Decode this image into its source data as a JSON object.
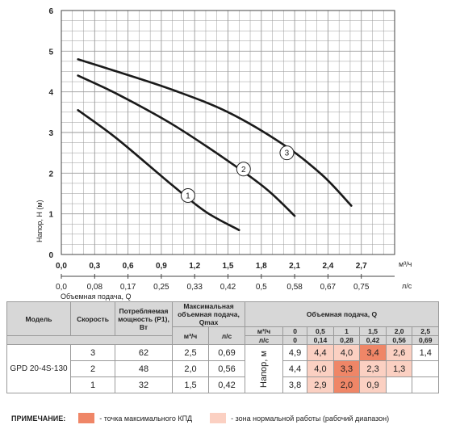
{
  "chart_data": {
    "type": "line",
    "ylabel": "Напор, H (м)",
    "xlabel": "Объемная подача, Q",
    "x_unit_top": "м³/ч",
    "x_unit_bottom": "л/с",
    "xlim": [
      0,
      3.0
    ],
    "ylim": [
      0,
      6
    ],
    "grid": true,
    "y_ticks": [
      "0",
      "1",
      "2",
      "3",
      "4",
      "5",
      "6"
    ],
    "x_ticks_m3h": [
      "0,0",
      "0,3",
      "0,6",
      "0,9",
      "1,2",
      "1,5",
      "1,8",
      "2,1",
      "2,4",
      "2,7"
    ],
    "x_ticks_ls": [
      "0,0",
      "0,08",
      "0,17",
      "0,25",
      "0,33",
      "0,42",
      "0,5",
      "0,58",
      "0,67",
      "0,75"
    ],
    "series": [
      {
        "name": "1",
        "x": [
          0.15,
          0.5,
          1.0,
          1.3,
          1.6
        ],
        "y": [
          3.55,
          2.85,
          1.7,
          1.05,
          0.6
        ],
        "label_at": [
          1.14,
          1.45
        ]
      },
      {
        "name": "2",
        "x": [
          0.15,
          0.5,
          1.0,
          1.5,
          1.85,
          2.1
        ],
        "y": [
          4.4,
          3.95,
          3.2,
          2.3,
          1.6,
          0.95
        ],
        "label_at": [
          1.64,
          2.1
        ]
      },
      {
        "name": "3",
        "x": [
          0.15,
          0.5,
          1.0,
          1.5,
          2.0,
          2.35,
          2.61
        ],
        "y": [
          4.8,
          4.5,
          4.05,
          3.5,
          2.7,
          1.95,
          1.2
        ],
        "label_at": [
          2.03,
          2.5
        ]
      }
    ]
  },
  "table": {
    "headers": {
      "model": "Модель",
      "speed": "Скорость",
      "power": "Потребляемая мощность (P1), Вт",
      "qmax": "Максимальная объемная подача, Qmax",
      "flow": "Объемная подача, Q",
      "unit_m3h": "м³/ч",
      "unit_ls": "л/с",
      "head": "Напор, м"
    },
    "q_m3h": [
      "0",
      "0,5",
      "1",
      "1,5",
      "2,0",
      "2,5"
    ],
    "q_ls": [
      "0",
      "0,14",
      "0,28",
      "0,42",
      "0,56",
      "0,69"
    ],
    "model": "GPD 20-4S-130",
    "rows": [
      {
        "speed": "3",
        "power": "62",
        "qmax_m3h": "2,5",
        "qmax_ls": "0,69",
        "heads": [
          "4,9",
          "4,4",
          "4,0",
          "3,4",
          "2,6",
          "1,4"
        ],
        "cls": [
          "",
          "norm",
          "norm",
          "max",
          "norm",
          ""
        ]
      },
      {
        "speed": "2",
        "power": "48",
        "qmax_m3h": "2,0",
        "qmax_ls": "0,56",
        "heads": [
          "4,4",
          "4,0",
          "3,3",
          "2,3",
          "1,3",
          ""
        ],
        "cls": [
          "",
          "norm",
          "max",
          "norm",
          "norm",
          ""
        ]
      },
      {
        "speed": "1",
        "power": "32",
        "qmax_m3h": "1,5",
        "qmax_ls": "0,42",
        "heads": [
          "3,8",
          "2,9",
          "2,0",
          "0,9",
          "",
          ""
        ],
        "cls": [
          "",
          "norm",
          "max",
          "norm",
          "",
          ""
        ]
      }
    ]
  },
  "note": {
    "label": "ПРИМЕЧАНИЕ:",
    "max": "- точка максимального КПД",
    "norm": "- зона нормальной работы (рабочий диапазон)"
  },
  "colors": {
    "max": "#ef8667",
    "norm": "#fbd0c2",
    "curve": "#1a1a1a",
    "grid": "#9a9a9a"
  }
}
